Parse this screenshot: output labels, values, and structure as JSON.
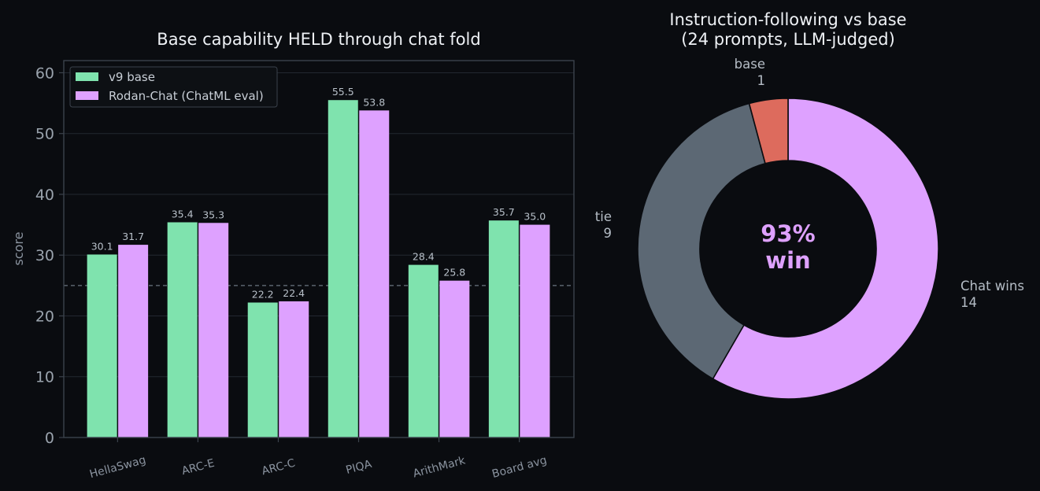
{
  "colors": {
    "background": "#0a0c10",
    "base": "#7fe3ae",
    "chat": "#dea1ff",
    "tie": "#5c6874",
    "base_win": "#dd6b5d",
    "grid": "#232830",
    "axis": "#3b424c"
  },
  "chart_data": [
    {
      "type": "bar",
      "title": "Base capability HELD through chat fold",
      "ylabel": "score",
      "xlabel": "",
      "ylim": [
        0,
        62
      ],
      "yticks": [
        0,
        10,
        20,
        30,
        40,
        50,
        60
      ],
      "reference_line": 25,
      "grid": true,
      "legend_position": "upper-left",
      "categories": [
        "HellaSwag",
        "ARC-E",
        "ARC-C",
        "PIQA",
        "ArithMark",
        "Board avg"
      ],
      "series": [
        {
          "name": "v9 base",
          "values": [
            30.1,
            35.4,
            22.2,
            55.5,
            28.4,
            35.7
          ],
          "labels": [
            "30.1",
            "35.4",
            "22.2",
            "55.5",
            "28.4",
            "35.7"
          ]
        },
        {
          "name": "Rodan-Chat (ChatML eval)",
          "values": [
            31.7,
            35.3,
            22.4,
            53.8,
            25.8,
            35.0
          ],
          "labels": [
            "31.7",
            "35.3",
            "22.4",
            "53.8",
            "25.8",
            "35.0"
          ]
        }
      ]
    },
    {
      "type": "pie",
      "title_line1": "Instruction-following vs base",
      "title_line2": "(24 prompts, LLM-judged)",
      "center_line1": "93%",
      "center_line2": "win",
      "slices": [
        {
          "label": "Chat wins",
          "value": 14,
          "value_label": "14"
        },
        {
          "label": "tie",
          "value": 9,
          "value_label": "9"
        },
        {
          "label": "base",
          "value": 1,
          "value_label": "1"
        }
      ]
    }
  ]
}
